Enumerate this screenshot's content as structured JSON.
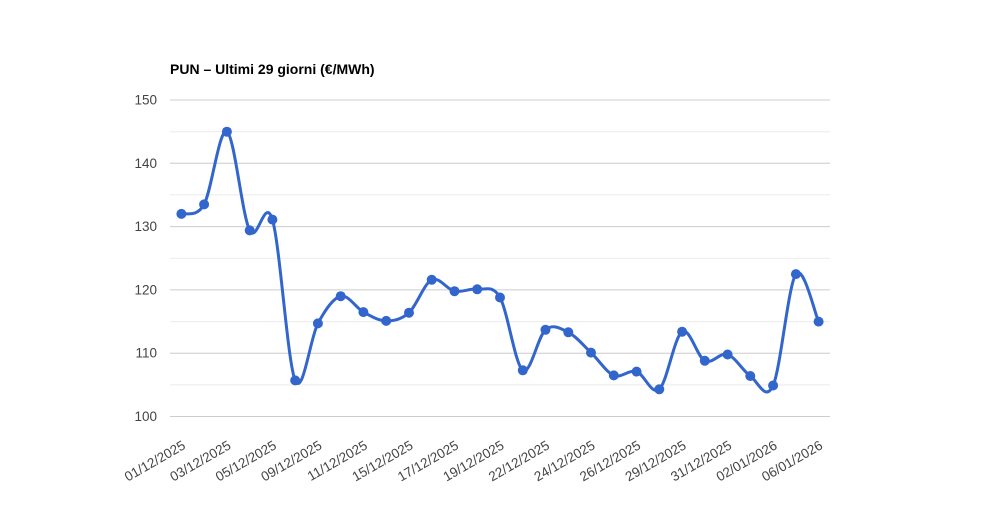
{
  "chart_data": {
    "type": "line",
    "title": "PUN – Ultimi 29 giorni (€/MWh)",
    "unit": "€/MWh",
    "x_tick_labels": [
      "01/12/2025",
      "03/12/2025",
      "05/12/2025",
      "09/12/2025",
      "11/12/2025",
      "15/12/2025",
      "17/12/2025",
      "19/12/2025",
      "22/12/2025",
      "24/12/2025",
      "26/12/2025",
      "29/12/2025",
      "31/12/2025",
      "02/01/2026",
      "06/01/2026"
    ],
    "x_tick_point_indices": [
      0,
      2,
      4,
      6,
      8,
      10,
      12,
      14,
      16,
      18,
      20,
      22,
      24,
      26,
      28
    ],
    "values": [
      132,
      133.5,
      145,
      129.4,
      131.1,
      105.7,
      114.7,
      119,
      116.5,
      115.1,
      116.4,
      121.6,
      119.8,
      120.1,
      118.8,
      107.3,
      113.7,
      113.3,
      110.1,
      106.5,
      107.1,
      104.3,
      113.4,
      108.8,
      109.8,
      106.4,
      104.9,
      122.5,
      115
    ],
    "ylim": [
      100,
      150
    ],
    "y_major_ticks": [
      100,
      110,
      120,
      130,
      140,
      150
    ],
    "y_minor_ticks": [
      105,
      115,
      125,
      135,
      145
    ],
    "grid": true,
    "legend": "none",
    "series_color": "#3366cc",
    "major_grid_color": "#cccccc",
    "minor_grid_color": "#ebebeb",
    "axis_label_color": "#444444",
    "title_color": "#000000"
  }
}
